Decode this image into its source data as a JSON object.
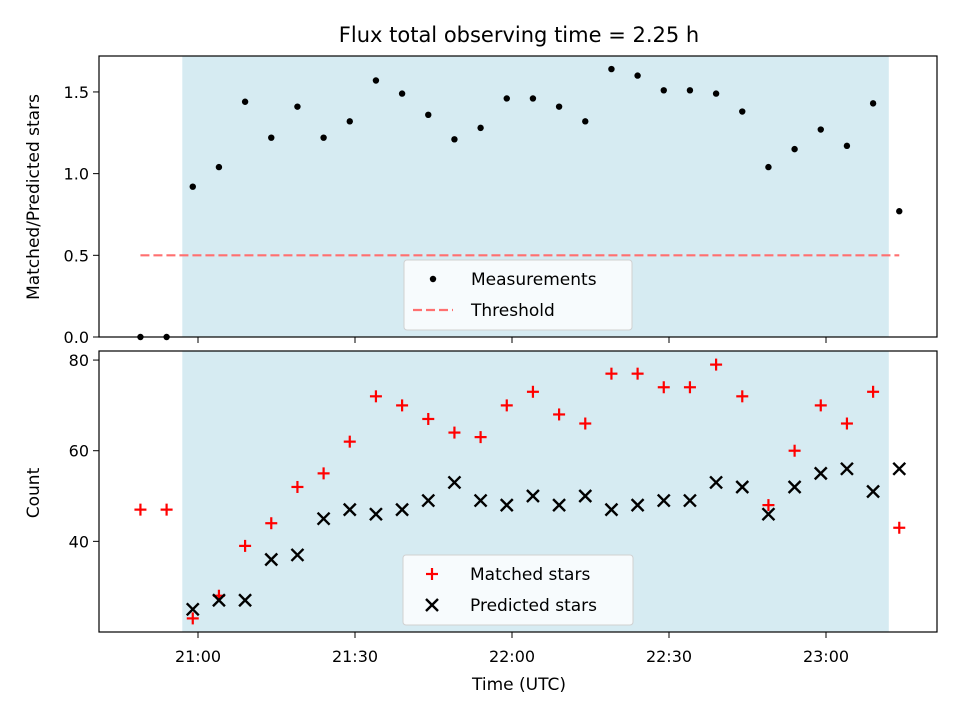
{
  "chart_data": [
    {
      "type": "scatter",
      "title": "Flux total observing time = 2.25 h",
      "xlabel": "",
      "ylabel": "Matched/Predicted stars",
      "ylim": [
        0,
        1.72
      ],
      "yticks": [
        "0.0",
        "0.5",
        "1.0",
        "1.5"
      ],
      "legend_position": "lower center",
      "shaded_interval": [
        "20:57",
        "23:12"
      ],
      "series": [
        {
          "name": "Measurements",
          "color": "#000000",
          "marker": "dot",
          "x": [
            "20:49",
            "20:54",
            "20:59",
            "21:04",
            "21:09",
            "21:14",
            "21:19",
            "21:24",
            "21:29",
            "21:34",
            "21:39",
            "21:44",
            "21:49",
            "21:54",
            "21:59",
            "22:04",
            "22:09",
            "22:14",
            "22:19",
            "22:24",
            "22:29",
            "22:34",
            "22:39",
            "22:44",
            "22:49",
            "22:54",
            "22:59",
            "23:04",
            "23:09",
            "23:14"
          ],
          "values": [
            0.0,
            0.0,
            0.92,
            1.04,
            1.44,
            1.22,
            1.41,
            1.22,
            1.32,
            1.57,
            1.49,
            1.36,
            1.21,
            1.28,
            1.46,
            1.46,
            1.41,
            1.32,
            1.64,
            1.6,
            1.51,
            1.51,
            1.49,
            1.38,
            1.04,
            1.15,
            1.27,
            1.17,
            1.43,
            0.77
          ]
        },
        {
          "name": "Threshold",
          "color": "#ff7070",
          "style": "dashed",
          "x": [
            "20:49",
            "23:14"
          ],
          "values": [
            0.5,
            0.5
          ]
        }
      ]
    },
    {
      "type": "scatter",
      "title": "",
      "xlabel": "Time (UTC)",
      "ylabel": "Count",
      "ylim": [
        20,
        82
      ],
      "yticks": [
        "40",
        "60",
        "80"
      ],
      "xticks": [
        "21:00",
        "21:30",
        "22:00",
        "22:30",
        "23:00"
      ],
      "legend_position": "lower center",
      "shaded_interval": [
        "20:57",
        "23:12"
      ],
      "series": [
        {
          "name": "Matched stars",
          "color": "#ff0000",
          "marker": "plus",
          "x": [
            "20:49",
            "20:54",
            "20:59",
            "21:04",
            "21:09",
            "21:14",
            "21:19",
            "21:24",
            "21:29",
            "21:34",
            "21:39",
            "21:44",
            "21:49",
            "21:54",
            "21:59",
            "22:04",
            "22:09",
            "22:14",
            "22:19",
            "22:24",
            "22:29",
            "22:34",
            "22:39",
            "22:44",
            "22:49",
            "22:54",
            "22:59",
            "23:04",
            "23:09",
            "23:14"
          ],
          "values": [
            47,
            47,
            23,
            28,
            39,
            44,
            52,
            55,
            62,
            72,
            70,
            67,
            64,
            63,
            70,
            73,
            68,
            66,
            77,
            77,
            74,
            74,
            79,
            72,
            48,
            60,
            70,
            66,
            73,
            43
          ]
        },
        {
          "name": "Predicted stars",
          "color": "#000000",
          "marker": "x",
          "x": [
            "20:59",
            "21:04",
            "21:09",
            "21:14",
            "21:19",
            "21:24",
            "21:29",
            "21:34",
            "21:39",
            "21:44",
            "21:49",
            "21:54",
            "21:59",
            "22:04",
            "22:09",
            "22:14",
            "22:19",
            "22:24",
            "22:29",
            "22:34",
            "22:39",
            "22:44",
            "22:49",
            "22:54",
            "22:59",
            "23:04",
            "23:09",
            "23:14"
          ],
          "values": [
            25,
            27,
            27,
            36,
            37,
            45,
            47,
            46,
            47,
            49,
            53,
            49,
            48,
            50,
            48,
            50,
            47,
            48,
            49,
            49,
            53,
            52,
            46,
            52,
            55,
            56,
            51,
            56
          ]
        }
      ]
    }
  ],
  "colors": {
    "shade": "#add8e6",
    "axes": "#000000"
  }
}
